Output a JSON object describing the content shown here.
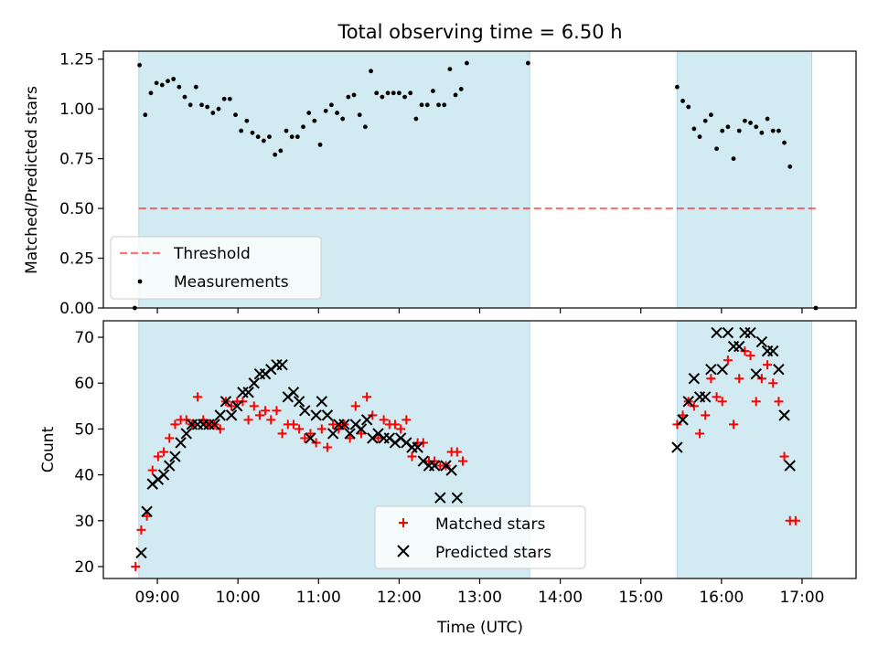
{
  "figure_title": "Total observing time = 6.50 h",
  "colors": {
    "shade": "#add8e6",
    "threshold": "#ff0000",
    "measurement": "#000000",
    "matched": "#ff0000",
    "predicted": "#000000"
  },
  "chart_data": [
    {
      "type": "scatter",
      "title": "Total observing time = 6.50 h",
      "xlabel": "",
      "ylabel": "Matched/Predicted stars",
      "x_unit": "hours UTC",
      "xlim": [
        8.33,
        17.67
      ],
      "ylim": [
        0,
        1.29
      ],
      "yticks": [
        0.0,
        0.25,
        0.5,
        0.75,
        1.0,
        1.25
      ],
      "ytick_labels": [
        "0.00",
        "0.25",
        "0.50",
        "0.75",
        "1.00",
        "1.25"
      ],
      "observing_windows": [
        [
          8.77,
          13.62
        ],
        [
          15.45,
          17.12
        ]
      ],
      "threshold": {
        "name": "Threshold",
        "value": 0.5,
        "x_range": [
          8.77,
          17.2
        ]
      },
      "legend_position": "lower-left",
      "series": [
        {
          "name": "Measurements",
          "marker": "dot",
          "points": [
            [
              8.72,
              0.0
            ],
            [
              8.78,
              1.22
            ],
            [
              8.85,
              0.97
            ],
            [
              8.92,
              1.08
            ],
            [
              8.99,
              1.13
            ],
            [
              9.06,
              1.12
            ],
            [
              9.13,
              1.14
            ],
            [
              9.2,
              1.15
            ],
            [
              9.27,
              1.11
            ],
            [
              9.34,
              1.06
            ],
            [
              9.41,
              1.02
            ],
            [
              9.48,
              1.11
            ],
            [
              9.55,
              1.02
            ],
            [
              9.62,
              1.01
            ],
            [
              9.69,
              0.98
            ],
            [
              9.76,
              1.0
            ],
            [
              9.83,
              1.05
            ],
            [
              9.9,
              1.05
            ],
            [
              9.97,
              0.97
            ],
            [
              10.04,
              0.89
            ],
            [
              10.11,
              0.94
            ],
            [
              10.18,
              0.88
            ],
            [
              10.25,
              0.86
            ],
            [
              10.32,
              0.84
            ],
            [
              10.39,
              0.86
            ],
            [
              10.46,
              0.77
            ],
            [
              10.53,
              0.79
            ],
            [
              10.6,
              0.89
            ],
            [
              10.67,
              0.86
            ],
            [
              10.74,
              0.86
            ],
            [
              10.81,
              0.91
            ],
            [
              10.88,
              0.98
            ],
            [
              10.95,
              0.94
            ],
            [
              11.02,
              0.82
            ],
            [
              11.09,
              0.99
            ],
            [
              11.16,
              1.02
            ],
            [
              11.23,
              0.98
            ],
            [
              11.3,
              0.95
            ],
            [
              11.37,
              1.06
            ],
            [
              11.44,
              1.07
            ],
            [
              11.51,
              0.97
            ],
            [
              11.58,
              0.91
            ],
            [
              11.65,
              1.19
            ],
            [
              11.72,
              1.08
            ],
            [
              11.79,
              1.06
            ],
            [
              11.86,
              1.08
            ],
            [
              11.93,
              1.08
            ],
            [
              12.0,
              1.08
            ],
            [
              12.07,
              1.06
            ],
            [
              12.14,
              1.08
            ],
            [
              12.21,
              0.95
            ],
            [
              12.28,
              1.02
            ],
            [
              12.35,
              1.02
            ],
            [
              12.42,
              1.09
            ],
            [
              12.49,
              1.02
            ],
            [
              12.56,
              1.02
            ],
            [
              12.63,
              1.2
            ],
            [
              12.7,
              1.07
            ],
            [
              12.77,
              1.1
            ],
            [
              12.84,
              1.23
            ],
            [
              13.6,
              1.23
            ],
            [
              15.45,
              1.11
            ],
            [
              15.52,
              1.04
            ],
            [
              15.59,
              1.01
            ],
            [
              15.66,
              0.9
            ],
            [
              15.73,
              0.86
            ],
            [
              15.8,
              0.94
            ],
            [
              15.87,
              0.97
            ],
            [
              15.94,
              0.8
            ],
            [
              16.01,
              0.89
            ],
            [
              16.08,
              0.91
            ],
            [
              16.15,
              0.75
            ],
            [
              16.22,
              0.89
            ],
            [
              16.29,
              0.94
            ],
            [
              16.36,
              0.93
            ],
            [
              16.43,
              0.91
            ],
            [
              16.5,
              0.88
            ],
            [
              16.57,
              0.95
            ],
            [
              16.64,
              0.89
            ],
            [
              16.71,
              0.89
            ],
            [
              16.78,
              0.83
            ],
            [
              16.85,
              0.71
            ],
            [
              17.17,
              0.0
            ]
          ]
        }
      ]
    },
    {
      "type": "scatter",
      "title": "",
      "xlabel": "Time (UTC)",
      "ylabel": "Count",
      "x_unit": "hours UTC",
      "xlim": [
        8.33,
        17.67
      ],
      "ylim": [
        17.4,
        73.6
      ],
      "xticks": [
        9,
        10,
        11,
        12,
        13,
        14,
        15,
        16,
        17
      ],
      "xtick_labels": [
        "09:00",
        "10:00",
        "11:00",
        "12:00",
        "13:00",
        "14:00",
        "15:00",
        "16:00",
        "17:00"
      ],
      "yticks": [
        20,
        30,
        40,
        50,
        60,
        70
      ],
      "ytick_labels": [
        "20",
        "30",
        "40",
        "50",
        "60",
        "70"
      ],
      "observing_windows": [
        [
          8.77,
          13.62
        ],
        [
          15.45,
          17.12
        ]
      ],
      "legend_position": "lower-center",
      "series": [
        {
          "name": "Matched stars",
          "marker": "plus",
          "points": [
            [
              8.73,
              20
            ],
            [
              8.8,
              28
            ],
            [
              8.87,
              31
            ],
            [
              8.94,
              41
            ],
            [
              9.01,
              44
            ],
            [
              9.08,
              45
            ],
            [
              9.15,
              48
            ],
            [
              9.22,
              51
            ],
            [
              9.29,
              52
            ],
            [
              9.36,
              52
            ],
            [
              9.43,
              51
            ],
            [
              9.5,
              57
            ],
            [
              9.57,
              52
            ],
            [
              9.64,
              51
            ],
            [
              9.71,
              51
            ],
            [
              9.78,
              50
            ],
            [
              9.85,
              56
            ],
            [
              9.92,
              55
            ],
            [
              9.99,
              56
            ],
            [
              10.06,
              56
            ],
            [
              10.13,
              52
            ],
            [
              10.2,
              55
            ],
            [
              10.27,
              53
            ],
            [
              10.34,
              54
            ],
            [
              10.41,
              52
            ],
            [
              10.48,
              54
            ],
            [
              10.55,
              49
            ],
            [
              10.62,
              51
            ],
            [
              10.69,
              51
            ],
            [
              10.76,
              50
            ],
            [
              10.83,
              48
            ],
            [
              10.9,
              49
            ],
            [
              10.97,
              47
            ],
            [
              11.04,
              50
            ],
            [
              11.11,
              46
            ],
            [
              11.18,
              51
            ],
            [
              11.25,
              50
            ],
            [
              11.32,
              51
            ],
            [
              11.39,
              48
            ],
            [
              11.46,
              55
            ],
            [
              11.53,
              49
            ],
            [
              11.6,
              57
            ],
            [
              11.67,
              53
            ],
            [
              11.74,
              48
            ],
            [
              11.81,
              52
            ],
            [
              11.88,
              51
            ],
            [
              11.95,
              51
            ],
            [
              12.02,
              50
            ],
            [
              12.09,
              52
            ],
            [
              12.16,
              44
            ],
            [
              12.23,
              47
            ],
            [
              12.3,
              47
            ],
            [
              12.37,
              43
            ],
            [
              12.44,
              43
            ],
            [
              12.51,
              42
            ],
            [
              12.58,
              42
            ],
            [
              12.65,
              45
            ],
            [
              12.72,
              45
            ],
            [
              12.79,
              43
            ],
            [
              15.45,
              51
            ],
            [
              15.52,
              53
            ],
            [
              15.59,
              56
            ],
            [
              15.66,
              55
            ],
            [
              15.73,
              49
            ],
            [
              15.8,
              53
            ],
            [
              15.87,
              61
            ],
            [
              15.94,
              57
            ],
            [
              16.01,
              56
            ],
            [
              16.08,
              65
            ],
            [
              16.15,
              51
            ],
            [
              16.22,
              61
            ],
            [
              16.29,
              67
            ],
            [
              16.36,
              66
            ],
            [
              16.43,
              56
            ],
            [
              16.5,
              61
            ],
            [
              16.57,
              64
            ],
            [
              16.64,
              60
            ],
            [
              16.71,
              56
            ],
            [
              16.78,
              44
            ],
            [
              16.85,
              30
            ],
            [
              16.92,
              30
            ]
          ]
        },
        {
          "name": "Predicted stars",
          "marker": "x",
          "points": [
            [
              8.8,
              23
            ],
            [
              8.87,
              32
            ],
            [
              8.94,
              38
            ],
            [
              9.01,
              39
            ],
            [
              9.08,
              40
            ],
            [
              9.15,
              42
            ],
            [
              9.22,
              44
            ],
            [
              9.29,
              47
            ],
            [
              9.36,
              49
            ],
            [
              9.43,
              51
            ],
            [
              9.5,
              51
            ],
            [
              9.57,
              51
            ],
            [
              9.64,
              51
            ],
            [
              9.71,
              51
            ],
            [
              9.78,
              53
            ],
            [
              9.85,
              56
            ],
            [
              9.92,
              53
            ],
            [
              9.99,
              55
            ],
            [
              10.06,
              58
            ],
            [
              10.13,
              58
            ],
            [
              10.2,
              60
            ],
            [
              10.27,
              62
            ],
            [
              10.34,
              62
            ],
            [
              10.41,
              63
            ],
            [
              10.48,
              64
            ],
            [
              10.55,
              64
            ],
            [
              10.62,
              57
            ],
            [
              10.69,
              58
            ],
            [
              10.76,
              56
            ],
            [
              10.83,
              54
            ],
            [
              10.9,
              48
            ],
            [
              10.97,
              53
            ],
            [
              11.04,
              56
            ],
            [
              11.11,
              53
            ],
            [
              11.18,
              49
            ],
            [
              11.25,
              51
            ],
            [
              11.32,
              51
            ],
            [
              11.39,
              49
            ],
            [
              11.46,
              51
            ],
            [
              11.53,
              50
            ],
            [
              11.6,
              52
            ],
            [
              11.67,
              48
            ],
            [
              11.74,
              49
            ],
            [
              11.81,
              48
            ],
            [
              11.88,
              48
            ],
            [
              11.95,
              47
            ],
            [
              12.02,
              48
            ],
            [
              12.09,
              47
            ],
            [
              12.16,
              46
            ],
            [
              12.23,
              46
            ],
            [
              12.3,
              43
            ],
            [
              12.37,
              42
            ],
            [
              12.44,
              42
            ],
            [
              12.51,
              35
            ],
            [
              12.58,
              42
            ],
            [
              12.65,
              41
            ],
            [
              12.72,
              35
            ],
            [
              15.45,
              46
            ],
            [
              15.52,
              52
            ],
            [
              15.59,
              56
            ],
            [
              15.66,
              61
            ],
            [
              15.73,
              57
            ],
            [
              15.8,
              57
            ],
            [
              15.87,
              63
            ],
            [
              15.94,
              71
            ],
            [
              16.01,
              63
            ],
            [
              16.08,
              71
            ],
            [
              16.15,
              68
            ],
            [
              16.22,
              68
            ],
            [
              16.29,
              71
            ],
            [
              16.36,
              71
            ],
            [
              16.43,
              62
            ],
            [
              16.5,
              69
            ],
            [
              16.57,
              67
            ],
            [
              16.64,
              67
            ],
            [
              16.71,
              63
            ],
            [
              16.78,
              53
            ],
            [
              16.85,
              42
            ]
          ]
        }
      ]
    }
  ]
}
